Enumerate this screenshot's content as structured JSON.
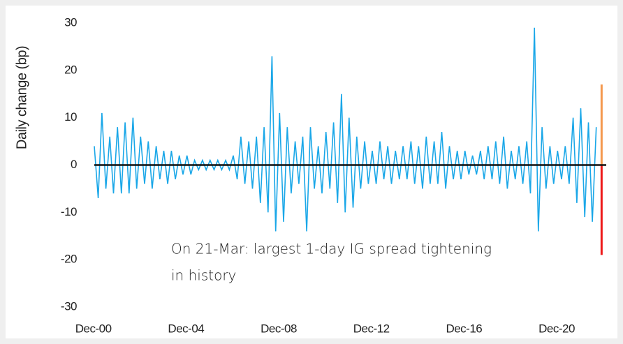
{
  "chart_data": {
    "type": "spike",
    "ylabel": "Daily change (bp)",
    "annotation": [
      "On 21-Mar: largest 1-day IG spread tightening",
      "in history"
    ],
    "color": "#1aa7e8",
    "zero_color": "#111111",
    "xlim": [
      2001.0,
      2023.1
    ],
    "xticks": [
      {
        "value": 2000.96,
        "label": "Dec-00"
      },
      {
        "value": 2004.96,
        "label": "Dec-04"
      },
      {
        "value": 2008.96,
        "label": "Dec-08"
      },
      {
        "value": 2012.96,
        "label": "Dec-12"
      },
      {
        "value": 2016.96,
        "label": "Dec-16"
      },
      {
        "value": 2020.96,
        "label": "Dec-20"
      }
    ],
    "ylim": [
      -30,
      30
    ],
    "yticks": [
      30,
      20,
      10,
      0,
      -10,
      -20,
      -30
    ],
    "x": [
      2001.0,
      2001.17,
      2001.33,
      2001.5,
      2001.67,
      2001.83,
      2002.0,
      2002.17,
      2002.33,
      2002.5,
      2002.67,
      2002.83,
      2003.0,
      2003.17,
      2003.33,
      2003.5,
      2003.67,
      2003.83,
      2004.0,
      2004.17,
      2004.33,
      2004.5,
      2004.67,
      2004.83,
      2005.0,
      2005.17,
      2005.33,
      2005.5,
      2005.67,
      2005.83,
      2006.0,
      2006.17,
      2006.33,
      2006.5,
      2006.67,
      2006.83,
      2007.0,
      2007.17,
      2007.33,
      2007.5,
      2007.67,
      2007.83,
      2008.0,
      2008.17,
      2008.33,
      2008.5,
      2008.67,
      2008.83,
      2009.0,
      2009.17,
      2009.33,
      2009.5,
      2009.67,
      2009.83,
      2010.0,
      2010.17,
      2010.33,
      2010.5,
      2010.67,
      2010.83,
      2011.0,
      2011.17,
      2011.33,
      2011.5,
      2011.67,
      2011.83,
      2012.0,
      2012.17,
      2012.33,
      2012.5,
      2012.67,
      2012.83,
      2013.0,
      2013.17,
      2013.33,
      2013.5,
      2013.67,
      2013.83,
      2014.0,
      2014.17,
      2014.33,
      2014.5,
      2014.67,
      2014.83,
      2015.0,
      2015.17,
      2015.33,
      2015.5,
      2015.67,
      2015.83,
      2016.0,
      2016.17,
      2016.33,
      2016.5,
      2016.67,
      2016.83,
      2017.0,
      2017.17,
      2017.33,
      2017.5,
      2017.67,
      2017.83,
      2018.0,
      2018.17,
      2018.33,
      2018.5,
      2018.67,
      2018.83,
      2019.0,
      2019.17,
      2019.33,
      2019.5,
      2019.67,
      2019.83,
      2020.0,
      2020.17,
      2020.33,
      2020.5,
      2020.67,
      2020.83,
      2021.0,
      2021.17,
      2021.33,
      2021.5,
      2021.67,
      2021.83,
      2022.0,
      2022.17,
      2022.33,
      2022.5,
      2022.67
    ],
    "values": [
      4,
      -7,
      11,
      -5,
      6,
      -6,
      8,
      -6,
      9,
      -6,
      10,
      -5,
      6,
      -4,
      5,
      -5,
      4,
      -3,
      3,
      -4,
      3,
      -3,
      2,
      -2,
      2,
      -2,
      1,
      -1,
      1,
      -1,
      1,
      -1,
      1,
      -1,
      1,
      -1,
      2,
      -3,
      6,
      -4,
      5,
      -5,
      6,
      -8,
      8,
      -10,
      23,
      -14,
      11,
      -12,
      8,
      -6,
      5,
      -4,
      6,
      -14,
      8,
      -5,
      4,
      -6,
      7,
      -5,
      9,
      -8,
      15,
      -10,
      10,
      -9,
      6,
      -5,
      5,
      -4,
      3,
      -4,
      5,
      -3,
      4,
      -4,
      3,
      -3,
      4,
      -3,
      5,
      -4,
      4,
      -5,
      6,
      -4,
      5,
      -4,
      7,
      -5,
      4,
      -3,
      3,
      -3,
      3,
      -2,
      2,
      -2,
      3,
      -3,
      4,
      -3,
      5,
      -4,
      6,
      -5,
      3,
      -3,
      4,
      -4,
      5,
      -6,
      29,
      -14,
      8,
      -5,
      4,
      -4,
      3,
      -3,
      4,
      -4,
      10,
      -8,
      12,
      -11,
      9,
      -12,
      8
    ],
    "highlights": [
      {
        "x": 2022.9,
        "value": 17,
        "color": "#f4994f"
      },
      {
        "x": 2022.9,
        "value": -19,
        "color": "#ee1b1b"
      }
    ]
  }
}
